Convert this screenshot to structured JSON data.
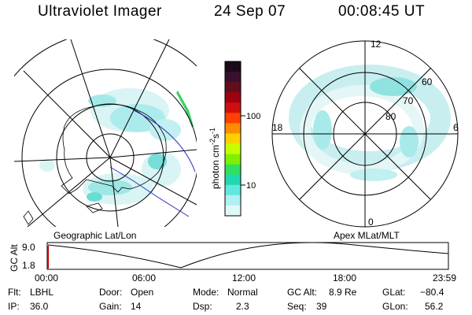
{
  "header": {
    "instrument": "Ultraviolet Imager",
    "date": "24 Sep 07",
    "time": "00:08:45 UT"
  },
  "left_panel": {
    "label": "Geographic Lat/Lon"
  },
  "right_panel": {
    "label": "Apex MLat/MLT",
    "mlt_labels": [
      "12",
      "18",
      "6",
      "0"
    ],
    "mlat_labels": [
      "60",
      "70",
      "80"
    ]
  },
  "colorbar": {
    "unit_label": "photon cm",
    "unit_exp": "-2",
    "unit_tail": "s",
    "unit_exp2": "-1",
    "ticks": [
      "100",
      "10"
    ],
    "colors": [
      "#1a0a1a",
      "#3a1030",
      "#60101a",
      "#a00010",
      "#d01010",
      "#ff4000",
      "#ff8c00",
      "#ffd000",
      "#c8ff00",
      "#80f000",
      "#30e060",
      "#20d8b0",
      "#60e8e0",
      "#b0f0f0",
      "#e0f8f8"
    ]
  },
  "altitude_strip": {
    "axis_label": "GC Alt",
    "ticks": [
      "9.0",
      "1.8"
    ],
    "time_ticks": [
      "00:00",
      "06:00",
      "12:00",
      "18:00",
      "23:59"
    ]
  },
  "status": {
    "filter": {
      "label": "Flt:",
      "value": "LBHL"
    },
    "ip": {
      "label": "IP:",
      "value": "36.0"
    },
    "door": {
      "label": "Door:",
      "value": "Open"
    },
    "gain": {
      "label": "Gain:",
      "value": "14"
    },
    "mode": {
      "label": "Mode:",
      "value": "Normal"
    },
    "dsp": {
      "label": "Dsp:",
      "value": "2.3"
    },
    "gcalt": {
      "label": "GC Alt:",
      "value": "8.9 Re"
    },
    "seq": {
      "label": "Seq:",
      "value": "39"
    },
    "glat": {
      "label": "GLat:",
      "value": "−80.4"
    },
    "glon": {
      "label": "GLon:",
      "value": "56.2"
    }
  }
}
